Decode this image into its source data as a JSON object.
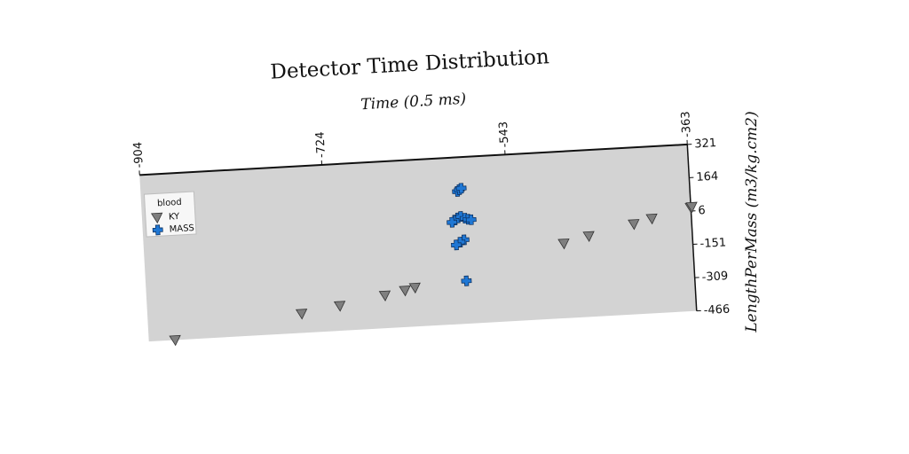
{
  "colors": {
    "plot_bg": "#d3d3d3",
    "ky": "#7f7f7f",
    "mass": "#1f77d4",
    "axis": "#111111"
  },
  "chart_data": {
    "type": "scatter",
    "title": "Detector Time Distribution",
    "xlabel": "Time (0.5 ms)",
    "ylabel": "LengthPerMass (m3/kg.cm2)",
    "x_axis_position": "top",
    "y_axis_position": "right",
    "xlim": [
      -904,
      -363
    ],
    "ylim": [
      -466,
      321
    ],
    "xticks": [
      -904,
      -724,
      -543,
      -363
    ],
    "yticks": [
      -466,
      -309,
      -151,
      6,
      164,
      321
    ],
    "grid": false,
    "legend": {
      "title": "blood",
      "position": "top-left"
    },
    "series": [
      {
        "name": "KY",
        "marker": "triangle-down",
        "color": "#7f7f7f",
        "points": [
          {
            "x": -878,
            "y": -466
          },
          {
            "x": -752,
            "y": -375
          },
          {
            "x": -714,
            "y": -348
          },
          {
            "x": -669,
            "y": -311
          },
          {
            "x": -649,
            "y": -293
          },
          {
            "x": -639,
            "y": -282
          },
          {
            "x": -490,
            "y": -113
          },
          {
            "x": -465,
            "y": -85
          },
          {
            "x": -420,
            "y": -40
          },
          {
            "x": -402,
            "y": -19
          },
          {
            "x": -363,
            "y": 23
          },
          {
            "x": -362,
            "y": 26
          }
        ]
      },
      {
        "name": "MASS",
        "marker": "plus",
        "color": "#1f77d4",
        "points": [
          {
            "x": -592,
            "y": 160
          },
          {
            "x": -590,
            "y": 168
          },
          {
            "x": -588,
            "y": 174
          },
          {
            "x": -596,
            "y": 26
          },
          {
            "x": -593,
            "y": 35
          },
          {
            "x": -590,
            "y": 41
          },
          {
            "x": -586,
            "y": 32
          },
          {
            "x": -583,
            "y": 26
          },
          {
            "x": -580,
            "y": 23
          },
          {
            "x": -599,
            "y": 16
          },
          {
            "x": -588,
            "y": -70
          },
          {
            "x": -592,
            "y": -80
          },
          {
            "x": -596,
            "y": -92
          },
          {
            "x": -588,
            "y": -264
          }
        ]
      }
    ]
  }
}
